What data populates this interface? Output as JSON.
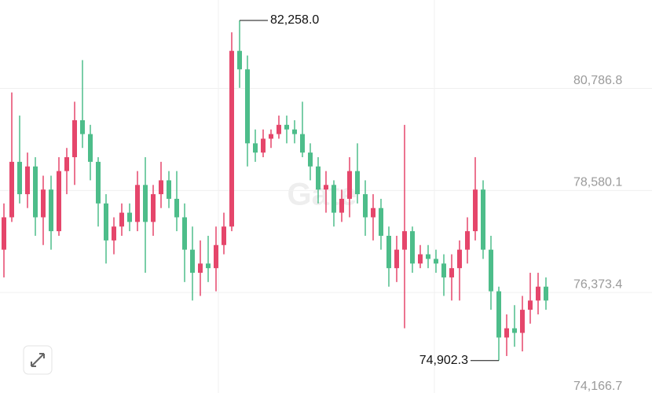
{
  "chart_data": {
    "type": "candlestick",
    "watermark": "Gate",
    "up_color": "#e5466b",
    "down_color": "#4dbd8a",
    "open": [
      77300,
      78000,
      79200,
      78500,
      79100,
      78000,
      78600,
      77700,
      79000,
      79300,
      80100,
      79800,
      79200,
      78300,
      77500,
      77800,
      78100,
      77900,
      78700,
      77900,
      78500,
      78800,
      78400,
      78000,
      77300,
      76800,
      77000,
      76900,
      77400,
      77800,
      81600,
      81200,
      79600,
      79400,
      79700,
      79800,
      80000,
      79900,
      79800,
      79400,
      79100,
      78600,
      78700,
      78100,
      78400,
      79000,
      78500,
      78000,
      78200,
      77600,
      76900,
      77300,
      77700,
      77000,
      77200,
      77100,
      77000,
      76700,
      76900,
      77300,
      77700,
      78600,
      77300,
      76400,
      75400,
      75600,
      75500,
      76000,
      76200,
      76500
    ],
    "high": [
      78300,
      80700,
      80200,
      79400,
      79300,
      78900,
      78900,
      79300,
      79500,
      80500,
      81400,
      80000,
      79300,
      78500,
      78000,
      78300,
      78300,
      79000,
      79300,
      78700,
      79200,
      79000,
      79000,
      78300,
      77800,
      77500,
      77600,
      77800,
      78100,
      82000,
      82258.0,
      81500,
      79900,
      79900,
      79900,
      80200,
      80200,
      80100,
      80500,
      79600,
      79300,
      79000,
      78800,
      78600,
      79300,
      79600,
      78800,
      78500,
      78400,
      77800,
      77600,
      80000,
      77800,
      77400,
      77400,
      77300,
      77200,
      77200,
      77500,
      78000,
      79300,
      78800,
      77600,
      76500,
      75900,
      76100,
      76300,
      76800,
      76800,
      76700
    ],
    "low": [
      76700,
      77900,
      78300,
      78200,
      77600,
      77400,
      77300,
      77600,
      78500,
      78700,
      79500,
      78800,
      77800,
      77000,
      77200,
      77600,
      77700,
      77700,
      76800,
      77600,
      78200,
      78200,
      77700,
      76600,
      76200,
      76300,
      76600,
      76400,
      77200,
      77700,
      80800,
      79100,
      79200,
      79300,
      79500,
      79700,
      79600,
      79600,
      79300,
      78800,
      78300,
      78100,
      77800,
      77900,
      78000,
      78300,
      77600,
      77500,
      77300,
      76500,
      76600,
      75600,
      76800,
      76900,
      76900,
      76800,
      76300,
      76200,
      76200,
      77000,
      77500,
      77100,
      76000,
      74902.3,
      75000,
      75200,
      75100,
      75700,
      75900,
      76000
    ],
    "close": [
      78000,
      79200,
      78500,
      79100,
      78000,
      78600,
      77700,
      79000,
      79300,
      80100,
      79800,
      79200,
      78300,
      77500,
      77800,
      78100,
      77900,
      78700,
      77900,
      78500,
      78800,
      78400,
      78000,
      77300,
      76800,
      77000,
      76900,
      77400,
      77800,
      81600,
      81200,
      79600,
      79400,
      79700,
      79800,
      80000,
      79900,
      79800,
      79400,
      79100,
      78600,
      78700,
      78100,
      78400,
      79000,
      78500,
      78000,
      78200,
      77600,
      76900,
      77300,
      77700,
      77000,
      77200,
      77100,
      77000,
      76700,
      76900,
      77300,
      77700,
      78600,
      77300,
      76400,
      75400,
      75600,
      75500,
      76000,
      76200,
      76500,
      76200
    ],
    "extremes": {
      "max": {
        "value": 82258.0,
        "label": "82,258.0"
      },
      "min": {
        "value": 74902.3,
        "label": "74,902.3"
      }
    },
    "ylim": [
      74200,
      82700
    ],
    "yticks": [
      {
        "value": 74166.7,
        "label": "74,166.7"
      },
      {
        "value": 76373.4,
        "label": "76,373.4"
      },
      {
        "value": 78580.1,
        "label": "78,580.1"
      },
      {
        "value": 80786.8,
        "label": "80,786.8"
      }
    ],
    "grid": true
  }
}
